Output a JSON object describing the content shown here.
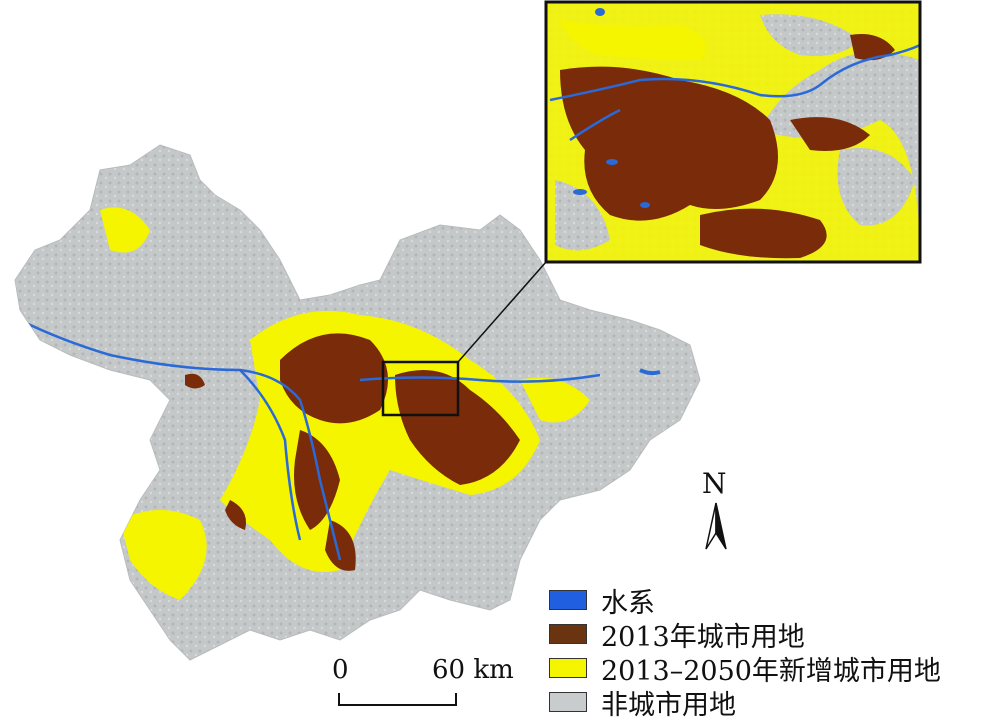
{
  "colors": {
    "water": "#1f5fe0",
    "urban_2013": "#7a2b0a",
    "new_urban_2013_2050": "#f5f500",
    "non_urban": "#c4c8c8",
    "background": "#ffffff"
  },
  "legend": {
    "items": [
      {
        "label": "水系",
        "color": "#1f5fe0"
      },
      {
        "label": "2013年城市用地",
        "color": "#6b3410"
      },
      {
        "label": "2013–2050年新增城市用地",
        "color": "#f5f500"
      },
      {
        "label": "非城市用地",
        "color": "#c8cccc"
      }
    ]
  },
  "scale_bar": {
    "start_label": "0",
    "end_label": "60 km"
  },
  "north_arrow": {
    "letter": "N"
  }
}
